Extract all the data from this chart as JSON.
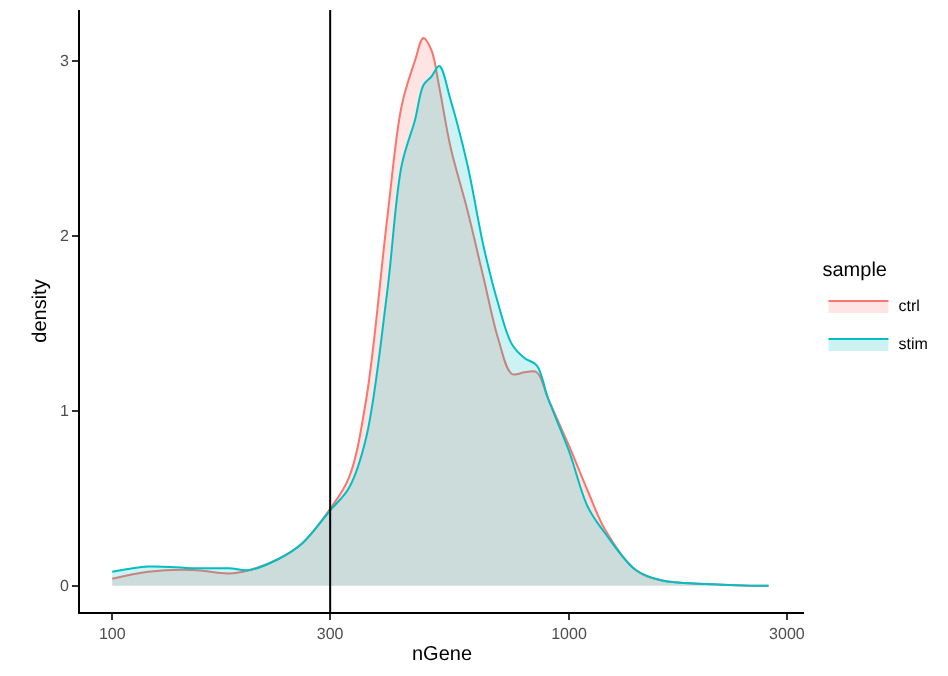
{
  "chart_data": {
    "type": "area",
    "xlabel": "nGene",
    "ylabel": "density",
    "legend_title": "sample",
    "log": "x",
    "legend": "right",
    "xlim": [
      85,
      3270
    ],
    "ylim": [
      -0.15,
      3.29
    ],
    "xticks": [
      100,
      300,
      1000,
      3000
    ],
    "yticks": [
      0,
      1,
      2,
      3
    ],
    "x": [
      100,
      120,
      150,
      180,
      200,
      230,
      260,
      300,
      330,
      360,
      400,
      430,
      460,
      480,
      500,
      520,
      550,
      600,
      650,
      700,
      750,
      800,
      850,
      900,
      1000,
      1100,
      1200,
      1400,
      1600,
      2000,
      2500,
      2735
    ],
    "series": [
      {
        "name": "ctrl",
        "color": "#f8766d",
        "values": [
          0.04,
          0.08,
          0.09,
          0.07,
          0.09,
          0.15,
          0.24,
          0.44,
          0.62,
          1.07,
          2.1,
          2.74,
          3.0,
          3.13,
          3.06,
          2.85,
          2.51,
          2.14,
          1.76,
          1.41,
          1.21,
          1.22,
          1.22,
          1.07,
          0.8,
          0.54,
          0.32,
          0.09,
          0.03,
          0.01,
          0,
          0
        ]
      },
      {
        "name": "stim",
        "color": "#00bfc4",
        "values": [
          0.08,
          0.11,
          0.1,
          0.1,
          0.09,
          0.15,
          0.24,
          0.43,
          0.56,
          0.85,
          1.68,
          2.4,
          2.66,
          2.86,
          2.91,
          2.97,
          2.78,
          2.4,
          1.94,
          1.61,
          1.38,
          1.3,
          1.26,
          1.07,
          0.77,
          0.45,
          0.3,
          0.09,
          0.03,
          0.01,
          0,
          0
        ]
      }
    ],
    "ref_lines": [
      {
        "axis": "x",
        "value": 300,
        "color": "#000000"
      }
    ]
  }
}
